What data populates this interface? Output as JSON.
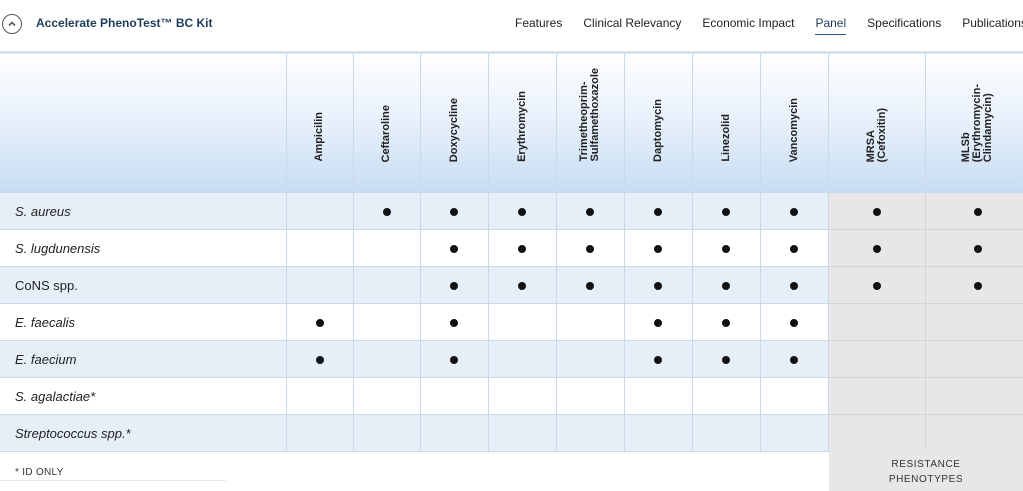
{
  "header": {
    "title": "Accelerate PhenoTest™ BC Kit",
    "nav": [
      {
        "label": "Features",
        "active": false
      },
      {
        "label": "Clinical Relevancy",
        "active": false
      },
      {
        "label": "Economic Impact",
        "active": false
      },
      {
        "label": "Panel",
        "active": true
      },
      {
        "label": "Specifications",
        "active": false
      },
      {
        "label": "Publications",
        "active": false
      }
    ],
    "collapse_icon": "chevron-up-circle-icon"
  },
  "table": {
    "columns": [
      "Ampicilin",
      "Ceftaroline",
      "Doxycycline",
      "Erythromycin",
      "Trimetheoprim-\nSulfamethoxazole",
      "Daptomycin",
      "Linezolid",
      "Vancomycin",
      "MRSA\n(Cefoxitin)",
      "MLSb\n(Erythromycin-\nClindamycin)"
    ],
    "rows": [
      {
        "organism": "S. aureus",
        "italic": true,
        "marks": [
          false,
          true,
          true,
          true,
          true,
          true,
          true,
          true,
          true,
          true
        ]
      },
      {
        "organism": "S. lugdunensis",
        "italic": true,
        "marks": [
          false,
          false,
          true,
          true,
          true,
          true,
          true,
          true,
          true,
          true
        ]
      },
      {
        "organism": "CoNS spp.",
        "italic": false,
        "marks": [
          false,
          false,
          true,
          true,
          true,
          true,
          true,
          true,
          true,
          true
        ]
      },
      {
        "organism": "E. faecalis",
        "italic": true,
        "marks": [
          true,
          false,
          true,
          false,
          false,
          true,
          true,
          true,
          false,
          false
        ]
      },
      {
        "organism": "E. faecium",
        "italic": true,
        "marks": [
          true,
          false,
          true,
          false,
          false,
          true,
          true,
          true,
          false,
          false
        ]
      },
      {
        "organism": "S. agalactiae*",
        "italic": true,
        "marks": [
          false,
          false,
          false,
          false,
          false,
          false,
          false,
          false,
          false,
          false
        ]
      },
      {
        "organism": "Streptococcus spp.*",
        "italic": true,
        "marks": [
          false,
          false,
          false,
          false,
          false,
          false,
          false,
          false,
          false,
          false
        ]
      }
    ],
    "dot_color": "#111111",
    "resistance_color": "#e7e7e7"
  },
  "footer": {
    "footnote": "* ID ONLY",
    "resistance_label_line1": "RESISTANCE",
    "resistance_label_line2": "PHENOTYPES"
  }
}
